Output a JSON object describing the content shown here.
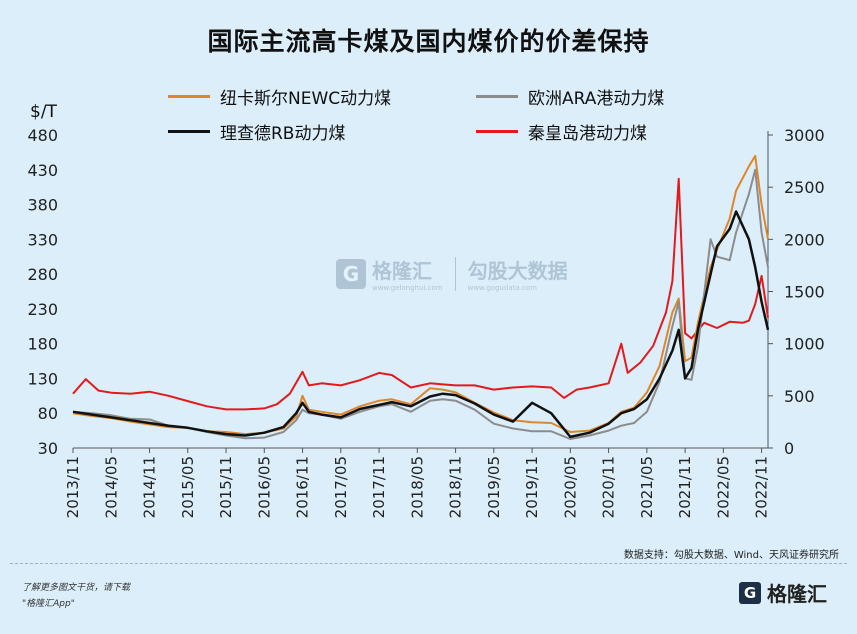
{
  "title": "国际主流高卡煤及国内煤价的价差保持",
  "source": "数据支持：勾股大数据、Wind、天风证券研究所",
  "footer": {
    "note_line1": "了解更多图文干货，请下载",
    "note_line2": "\"格隆汇App\"",
    "brand": "格隆汇",
    "brand_icon": "G"
  },
  "watermark": {
    "brand": "格隆汇",
    "brand_sub": "www.gelonghui.com",
    "icon": "G",
    "partner": "勾股大数据",
    "partner_sub": "www.gogudata.com"
  },
  "chart_data": {
    "type": "line",
    "title": "国际主流高卡煤及国内煤价的价差保持",
    "y_left_label": "$/T",
    "y_left_ticks": [
      30,
      80,
      130,
      180,
      230,
      280,
      330,
      380,
      430,
      480
    ],
    "y_right_ticks": [
      0,
      500,
      1000,
      1500,
      2000,
      2500,
      3000
    ],
    "ylim_left": [
      30,
      480
    ],
    "ylim_right": [
      0,
      3000
    ],
    "x_ticks": [
      "2013/11",
      "2014/05",
      "2014/11",
      "2015/05",
      "2015/11",
      "2016/05",
      "2016/11",
      "2017/05",
      "2017/11",
      "2018/05",
      "2018/11",
      "2019/05",
      "2019/11",
      "2020/05",
      "2020/11",
      "2021/05",
      "2021/11",
      "2022/05",
      "2022/11"
    ],
    "legend_position": "top",
    "series": [
      {
        "name": "纽卡斯尔NEWC动力煤",
        "axis": "left",
        "color": "#e0862a",
        "width": 2,
        "x": [
          "2013/11",
          "2014/02",
          "2014/05",
          "2014/08",
          "2014/11",
          "2015/02",
          "2015/05",
          "2015/08",
          "2015/11",
          "2016/02",
          "2016/05",
          "2016/08",
          "2016/10",
          "2016/11",
          "2016/12",
          "2017/02",
          "2017/05",
          "2017/08",
          "2017/11",
          "2018/01",
          "2018/04",
          "2018/07",
          "2018/09",
          "2018/11",
          "2019/02",
          "2019/05",
          "2019/08",
          "2019/11",
          "2020/02",
          "2020/05",
          "2020/08",
          "2020/11",
          "2021/01",
          "2021/03",
          "2021/05",
          "2021/07",
          "2021/09",
          "2021/10",
          "2021/11",
          "2021/12",
          "2022/01",
          "2022/03",
          "2022/04",
          "2022/06",
          "2022/07",
          "2022/09",
          "2022/10",
          "2022/11",
          "2022/12"
        ],
        "y": [
          80,
          76,
          73,
          68,
          64,
          60,
          59,
          54,
          53,
          50,
          52,
          58,
          75,
          105,
          85,
          82,
          78,
          90,
          98,
          100,
          93,
          116,
          114,
          110,
          95,
          81,
          70,
          67,
          66,
          53,
          55,
          66,
          82,
          88,
          110,
          148,
          225,
          245,
          155,
          160,
          210,
          290,
          315,
          360,
          400,
          435,
          450,
          380,
          330
        ]
      },
      {
        "name": "欧洲ARA港动力煤",
        "axis": "left",
        "color": "#8c8c8c",
        "width": 2,
        "x": [
          "2013/11",
          "2014/02",
          "2014/05",
          "2014/08",
          "2014/11",
          "2015/02",
          "2015/05",
          "2015/08",
          "2015/11",
          "2016/02",
          "2016/05",
          "2016/08",
          "2016/10",
          "2016/11",
          "2016/12",
          "2017/02",
          "2017/05",
          "2017/08",
          "2017/11",
          "2018/01",
          "2018/04",
          "2018/07",
          "2018/09",
          "2018/11",
          "2019/02",
          "2019/05",
          "2019/08",
          "2019/11",
          "2020/02",
          "2020/05",
          "2020/08",
          "2020/11",
          "2021/01",
          "2021/03",
          "2021/05",
          "2021/07",
          "2021/09",
          "2021/10",
          "2021/11",
          "2021/12",
          "2022/01",
          "2022/03",
          "2022/04",
          "2022/06",
          "2022/07",
          "2022/09",
          "2022/10",
          "2022/11",
          "2022/12"
        ],
        "y": [
          82,
          80,
          77,
          72,
          71,
          62,
          59,
          53,
          48,
          44,
          45,
          53,
          70,
          85,
          80,
          78,
          72,
          82,
          90,
          93,
          82,
          98,
          100,
          98,
          85,
          65,
          58,
          54,
          54,
          43,
          48,
          55,
          62,
          66,
          82,
          125,
          205,
          240,
          130,
          128,
          175,
          330,
          305,
          300,
          340,
          395,
          430,
          340,
          290
        ]
      },
      {
        "name": "理查德RB动力煤",
        "axis": "left",
        "color": "#111111",
        "width": 2.5,
        "x": [
          "2013/11",
          "2014/02",
          "2014/05",
          "2014/08",
          "2014/11",
          "2015/02",
          "2015/05",
          "2015/08",
          "2015/11",
          "2016/02",
          "2016/05",
          "2016/08",
          "2016/10",
          "2016/11",
          "2016/12",
          "2017/02",
          "2017/05",
          "2017/08",
          "2017/11",
          "2018/01",
          "2018/04",
          "2018/07",
          "2018/09",
          "2018/11",
          "2019/02",
          "2019/05",
          "2019/08",
          "2019/11",
          "2020/02",
          "2020/05",
          "2020/08",
          "2020/11",
          "2021/01",
          "2021/03",
          "2021/05",
          "2021/07",
          "2021/09",
          "2021/10",
          "2021/11",
          "2021/12",
          "2022/01",
          "2022/03",
          "2022/04",
          "2022/06",
          "2022/07",
          "2022/09",
          "2022/10",
          "2022/11",
          "2022/12"
        ],
        "y": [
          82,
          78,
          74,
          70,
          66,
          62,
          59,
          54,
          50,
          48,
          52,
          60,
          80,
          95,
          82,
          78,
          74,
          86,
          92,
          96,
          90,
          104,
          108,
          106,
          94,
          78,
          68,
          95,
          80,
          46,
          52,
          65,
          80,
          86,
          100,
          130,
          170,
          200,
          130,
          145,
          200,
          280,
          320,
          345,
          370,
          330,
          290,
          240,
          200
        ]
      },
      {
        "name": "秦皇岛港动力煤",
        "axis": "right",
        "color": "#e31a1c",
        "width": 2,
        "x": [
          "2013/11",
          "2014/01",
          "2014/03",
          "2014/05",
          "2014/08",
          "2014/11",
          "2015/02",
          "2015/05",
          "2015/08",
          "2015/11",
          "2016/02",
          "2016/05",
          "2016/07",
          "2016/09",
          "2016/11",
          "2016/12",
          "2017/02",
          "2017/05",
          "2017/08",
          "2017/11",
          "2018/01",
          "2018/04",
          "2018/07",
          "2018/09",
          "2018/11",
          "2019/02",
          "2019/05",
          "2019/08",
          "2019/11",
          "2020/02",
          "2020/04",
          "2020/06",
          "2020/08",
          "2020/11",
          "2021/01",
          "2021/02",
          "2021/04",
          "2021/06",
          "2021/08",
          "2021/09",
          "2021/10",
          "2021/11",
          "2021/12",
          "2022/02",
          "2022/04",
          "2022/06",
          "2022/08",
          "2022/09",
          "2022/10",
          "2022/11",
          "2022/12"
        ],
        "y": [
          520,
          660,
          550,
          530,
          520,
          540,
          500,
          450,
          400,
          370,
          370,
          380,
          420,
          520,
          730,
          600,
          620,
          600,
          650,
          720,
          700,
          580,
          620,
          610,
          600,
          600,
          560,
          580,
          590,
          580,
          480,
          560,
          580,
          620,
          1000,
          720,
          820,
          980,
          1300,
          1600,
          2580,
          1100,
          1050,
          1200,
          1150,
          1210,
          1200,
          1220,
          1380,
          1650,
          1250
        ]
      }
    ]
  }
}
